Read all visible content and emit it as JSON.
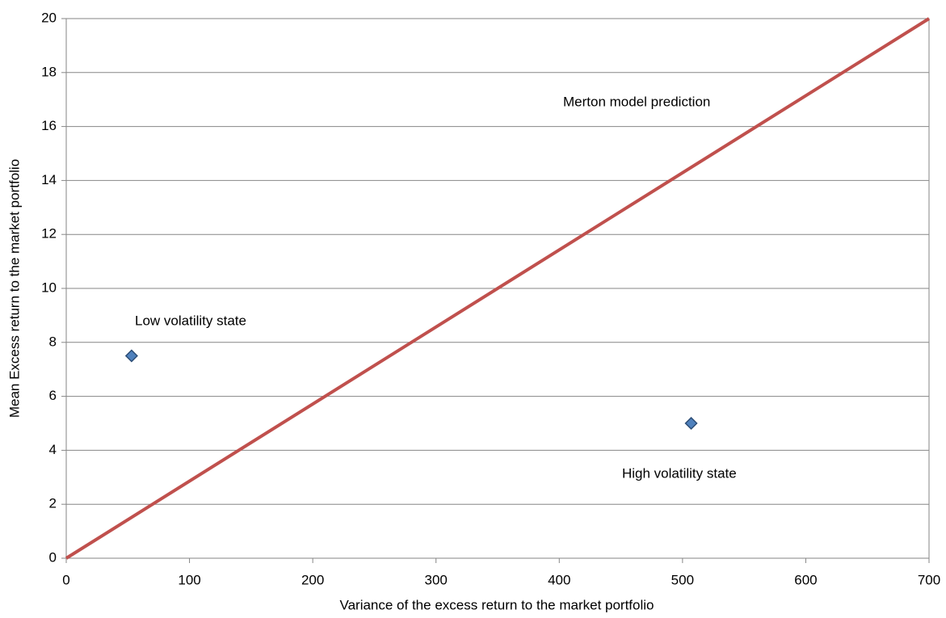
{
  "chart_data": {
    "type": "scatter",
    "x_label": "Variance of the excess return to the market portfolio",
    "y_label": "Mean Excess return to the market portfolio",
    "annotations": [
      "Merton model prediction",
      "Low volatility state",
      "High volatility state"
    ],
    "series": [
      {
        "type": "scatter",
        "color": "#4f81bd",
        "x": [
          53,
          507
        ],
        "values": [
          7.5,
          5.0
        ]
      },
      {
        "type": "line",
        "color": "#c0504d",
        "x": [
          0,
          700
        ],
        "values": [
          0,
          20
        ]
      }
    ],
    "xlim": [
      0,
      700
    ],
    "xticks": [
      0,
      100,
      200,
      300,
      400,
      500,
      600,
      700
    ],
    "ylim": [
      0,
      20
    ],
    "yticks": [
      0,
      2,
      4,
      6,
      8,
      10,
      12,
      14,
      16,
      18,
      20
    ],
    "grid": true
  }
}
